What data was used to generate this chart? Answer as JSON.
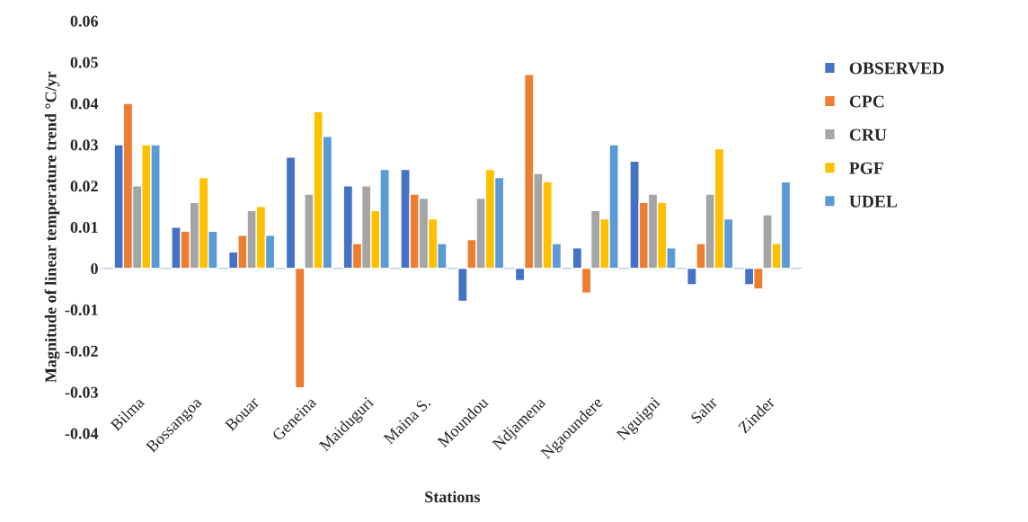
{
  "chart_data": {
    "type": "bar",
    "xlabel": "Stations",
    "ylabel": "Magnitude of linear temperature trend °C/yr",
    "categories": [
      "Bilma",
      "Bossangoa",
      "Bouar",
      "Geneina",
      "Maiduguri",
      "Maina S.",
      "Moundou",
      "Ndjamena",
      "Ngaoundere",
      "Nguigni",
      "Sahr",
      "Zinder"
    ],
    "series": [
      {
        "name": "OBSERVED",
        "color": "#4472c4",
        "values": [
          0.03,
          0.01,
          0.004,
          0.027,
          0.02,
          0.024,
          -0.008,
          -0.003,
          0.005,
          0.026,
          -0.004,
          -0.004
        ]
      },
      {
        "name": "CPC",
        "color": "#ed7d31",
        "values": [
          0.04,
          0.009,
          0.008,
          -0.029,
          0.006,
          0.018,
          0.007,
          0.047,
          -0.006,
          0.016,
          0.006,
          -0.005
        ]
      },
      {
        "name": "CRU",
        "color": "#a5a5a5",
        "values": [
          0.02,
          0.016,
          0.014,
          0.018,
          0.02,
          0.017,
          0.017,
          0.023,
          0.014,
          0.018,
          0.018,
          0.013
        ]
      },
      {
        "name": "PGF",
        "color": "#ffc000",
        "values": [
          0.03,
          0.022,
          0.015,
          0.038,
          0.014,
          0.012,
          0.024,
          0.021,
          0.012,
          0.016,
          0.029,
          0.006
        ]
      },
      {
        "name": "UDEL",
        "color": "#5b9bd5",
        "values": [
          0.03,
          0.009,
          0.008,
          0.032,
          0.024,
          0.006,
          0.022,
          0.006,
          0.03,
          0.005,
          0.012,
          0.021
        ]
      }
    ],
    "ylim": [
      -0.04,
      0.06
    ],
    "yticks": [
      -0.04,
      -0.03,
      -0.02,
      -0.01,
      0,
      0.01,
      0.02,
      0.03,
      0.04,
      0.05,
      0.06
    ],
    "ref_lines": [
      {
        "axis": "y",
        "value": 0,
        "color": "#b4c7e7"
      }
    ],
    "grid": false,
    "legend": "right"
  }
}
